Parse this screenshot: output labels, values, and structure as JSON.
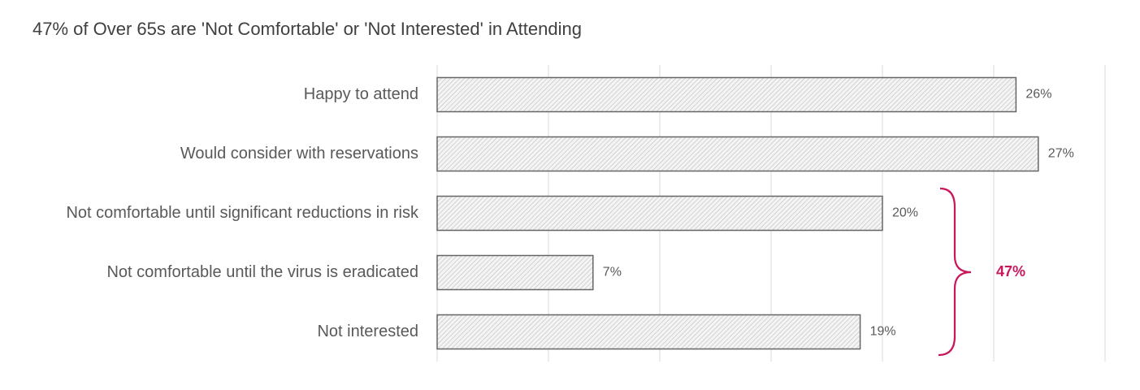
{
  "chart_data": {
    "type": "hbar",
    "title": "47% of Over 65s are 'Not Comfortable' or 'Not Interested' in Attending",
    "categories": [
      "Happy to attend",
      "Would consider with reservations",
      "Not comfortable until significant reductions in risk",
      "Not comfortable until the virus is eradicated",
      "Not interested"
    ],
    "values": [
      26,
      27,
      20,
      7,
      19
    ],
    "value_labels": [
      "26%",
      "27%",
      "20%",
      "7%",
      "19%"
    ],
    "color": "#666666",
    "xlim": [
      0,
      30
    ],
    "xticks": [
      0,
      5,
      10,
      15,
      20,
      25,
      30
    ],
    "grid": true,
    "annotation": {
      "text": "47%",
      "color": "#c8175b"
    }
  }
}
